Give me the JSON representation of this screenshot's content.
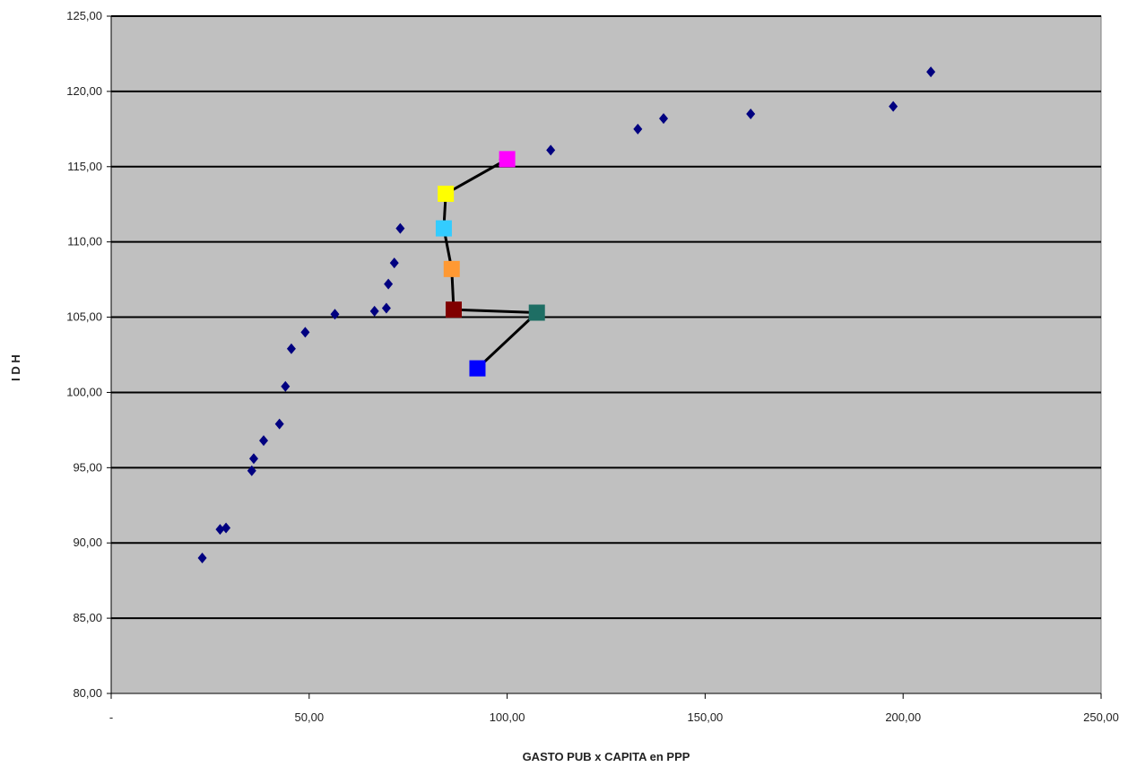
{
  "chart_data": {
    "type": "scatter",
    "title": "",
    "xlabel": "GASTO PUB x CAPITA en PPP",
    "ylabel": "I D H",
    "xlim": [
      0,
      250
    ],
    "ylim": [
      80,
      125
    ],
    "x_tick_labels": [
      "-",
      "50,00",
      "100,00",
      "150,00",
      "200,00",
      "250,00"
    ],
    "y_tick_labels": [
      "80,00",
      "85,00",
      "90,00",
      "95,00",
      "100,00",
      "105,00",
      "110,00",
      "115,00",
      "120,00",
      "125,00"
    ],
    "grid": "horizontal",
    "plot_background": "#c0c0c0",
    "series": [
      {
        "marker": "diamond",
        "color": "#000080",
        "points": [
          [
            23.0,
            89.0
          ],
          [
            27.5,
            90.9
          ],
          [
            29.0,
            91.0
          ],
          [
            35.5,
            94.8
          ],
          [
            36.0,
            95.6
          ],
          [
            38.5,
            96.8
          ],
          [
            42.5,
            97.9
          ],
          [
            44.0,
            100.4
          ],
          [
            45.5,
            102.9
          ],
          [
            49.0,
            104.0
          ],
          [
            56.5,
            105.2
          ],
          [
            66.5,
            105.4
          ],
          [
            69.5,
            105.6
          ],
          [
            70.0,
            107.2
          ],
          [
            71.5,
            108.6
          ],
          [
            73.0,
            110.9
          ],
          [
            111.0,
            116.1
          ],
          [
            133.0,
            117.5
          ],
          [
            139.5,
            118.2
          ],
          [
            161.5,
            118.5
          ],
          [
            197.5,
            119.0
          ],
          [
            207.0,
            121.3
          ]
        ]
      },
      {
        "marker": "square",
        "path_color": "#000000",
        "points": [
          {
            "x": 92.5,
            "y": 101.6,
            "color": "#0000ff"
          },
          {
            "x": 107.5,
            "y": 105.3,
            "color": "#1e6e64"
          },
          {
            "x": 86.5,
            "y": 105.5,
            "color": "#800000"
          },
          {
            "x": 86.0,
            "y": 108.2,
            "color": "#ff9933"
          },
          {
            "x": 84.0,
            "y": 110.9,
            "color": "#33ccff"
          },
          {
            "x": 84.5,
            "y": 113.2,
            "color": "#ffff00"
          },
          {
            "x": 100.0,
            "y": 115.5,
            "color": "#ff00ff"
          }
        ]
      }
    ]
  }
}
